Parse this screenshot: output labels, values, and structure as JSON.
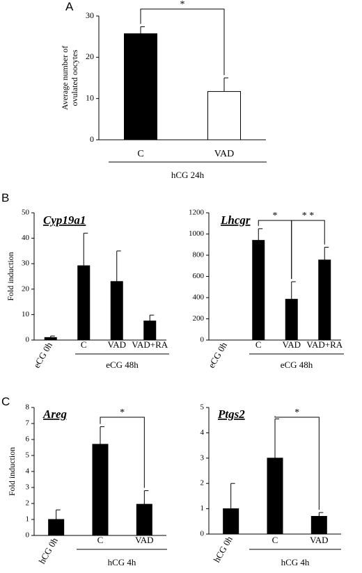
{
  "panel_letters": [
    "A",
    "B",
    "C"
  ],
  "chart_data": [
    {
      "panel": "A",
      "type": "bar",
      "title": "",
      "categories": [
        "C",
        "VAD"
      ],
      "values": [
        25.7,
        11.7
      ],
      "errors": [
        1.7,
        3.3
      ],
      "fills": [
        "#000000",
        "#ffffff"
      ],
      "ylabel": "Average number of ovulated oocytes",
      "ylim": [
        0,
        30
      ],
      "yticks": [
        0,
        10,
        20,
        30
      ],
      "group_label": "hCG 24h",
      "group_span": [
        0,
        1
      ],
      "significance": [
        {
          "from": 0,
          "to": 1,
          "label": "*"
        }
      ],
      "rotated_categories": false,
      "grid": false
    },
    {
      "panel": "B",
      "type": "bar",
      "title": "Cyp19a1",
      "categories": [
        "eCG 0h",
        "C",
        "VAD",
        "VAD+RA"
      ],
      "values": [
        1,
        29.2,
        23,
        7.5
      ],
      "errors": [
        0.6,
        12.8,
        12,
        2.3
      ],
      "fills": [
        "#000000",
        "#000000",
        "#000000",
        "#000000"
      ],
      "ylabel": "Fold induction",
      "ylim": [
        0,
        50
      ],
      "yticks": [
        0,
        10,
        20,
        30,
        40,
        50
      ],
      "group_label": "eCG 48h",
      "group_span": [
        1,
        3
      ],
      "significance": [],
      "rotated_categories": true,
      "grid": false
    },
    {
      "panel": "B",
      "type": "bar",
      "title": "Lhcgr",
      "categories": [
        "eCG 0h",
        "C",
        "VAD",
        "VAD+RA"
      ],
      "values": [
        0,
        940,
        385,
        755
      ],
      "errors": [
        0,
        110,
        165,
        120
      ],
      "fills": [
        "#000000",
        "#000000",
        "#000000",
        "#000000"
      ],
      "ylabel": "",
      "ylim": [
        0,
        1200
      ],
      "yticks": [
        0,
        200,
        400,
        600,
        800,
        1000,
        1200
      ],
      "group_label": "eCG 48h",
      "group_span": [
        1,
        3
      ],
      "significance": [
        {
          "from": 1,
          "to": 2,
          "label": "*"
        },
        {
          "from": 2,
          "to": 3,
          "label": "* *"
        }
      ],
      "rotated_categories": true,
      "grid": false
    },
    {
      "panel": "C",
      "type": "bar",
      "title": "Areg",
      "categories": [
        "hCG 0h",
        "C",
        "VAD"
      ],
      "values": [
        1,
        5.7,
        1.95
      ],
      "errors": [
        0.6,
        1.1,
        0.85
      ],
      "fills": [
        "#000000",
        "#000000",
        "#000000"
      ],
      "ylabel": "Fold induction",
      "ylim": [
        0,
        8
      ],
      "yticks": [
        0,
        1,
        2,
        3,
        4,
        5,
        6,
        7,
        8
      ],
      "group_label": "hCG 4h",
      "group_span": [
        1,
        2
      ],
      "significance": [
        {
          "from": 1,
          "to": 2,
          "label": "*"
        }
      ],
      "rotated_categories": true,
      "grid": false
    },
    {
      "panel": "C",
      "type": "bar",
      "title": "Ptgs2",
      "categories": [
        "hCG 0h",
        "C",
        "VAD"
      ],
      "values": [
        1,
        3,
        0.7
      ],
      "errors": [
        1,
        1.55,
        0.15
      ],
      "fills": [
        "#000000",
        "#000000",
        "#000000"
      ],
      "ylabel": "",
      "ylim": [
        0,
        5
      ],
      "yticks": [
        0,
        1,
        2,
        3,
        4,
        5
      ],
      "group_label": "hCG 4h",
      "group_span": [
        1,
        2
      ],
      "significance": [
        {
          "from": 1,
          "to": 2,
          "label": "*"
        }
      ],
      "rotated_categories": true,
      "grid": false
    }
  ]
}
